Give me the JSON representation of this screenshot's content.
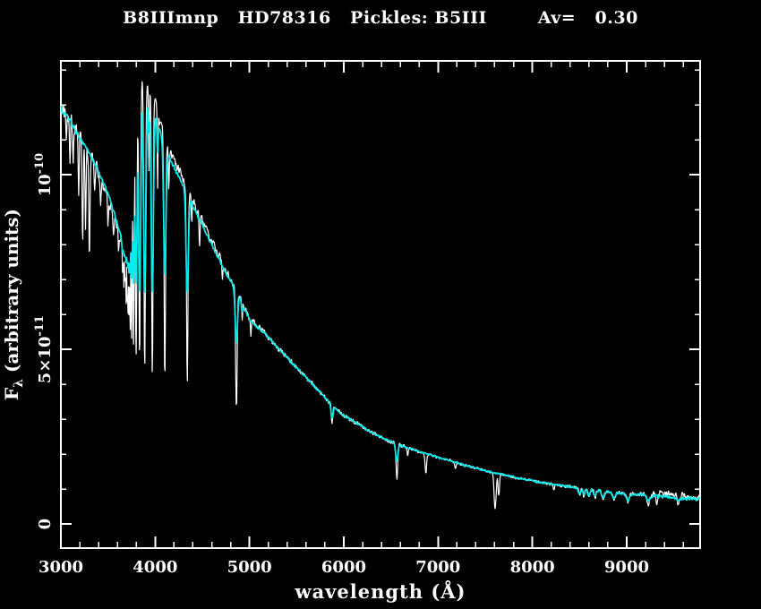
{
  "window": {
    "background": "#000000"
  },
  "chart_data": {
    "type": "line",
    "title": "B8IIImnp   HD78316   Pickles: B5III        Av=   0.30",
    "target_name": "HD78316",
    "spectral_type_label": "B8IIImnp",
    "template_label": "Pickles: B5III",
    "extinction_label": "Av=   0.30",
    "xlabel": "wavelength (Å)",
    "ylabel_parts": {
      "pre": "F",
      "sub": "λ",
      "post": " (arbitrary units)"
    },
    "x_axis": {
      "min": 3000,
      "max": 9779,
      "major_ticks": [
        3000,
        4000,
        5000,
        6000,
        7000,
        8000,
        9000
      ],
      "tick_labels": [
        "3000",
        "4000",
        "5000",
        "6000",
        "7000",
        "8000",
        "9000"
      ],
      "minor_step": 200
    },
    "y_axis": {
      "min": -6.9e-12,
      "max": 1.326e-10,
      "major_ticks": [
        {
          "value": 0,
          "label": "0"
        },
        {
          "value": 5e-11,
          "label": "5×10^-11"
        },
        {
          "value": 1e-10,
          "label": "10^-10"
        }
      ],
      "minor_step": 1e-11
    },
    "flux_unit_scale": 1e-11,
    "grid": false,
    "legend": false,
    "series": [
      {
        "key": "observed",
        "color": "#ffffff",
        "stroke_width": 1.2
      },
      {
        "key": "template",
        "color": "#00eded",
        "stroke_width": 1.7
      }
    ],
    "continuum": [
      [
        3000,
        11.9
      ],
      [
        3060,
        11.7
      ],
      [
        3120,
        11.45
      ],
      [
        3200,
        11.05
      ],
      [
        3280,
        10.7
      ],
      [
        3360,
        10.3
      ],
      [
        3440,
        9.85
      ],
      [
        3520,
        9.3
      ],
      [
        3600,
        8.55
      ],
      [
        3650,
        8.15
      ],
      [
        3690,
        7.92
      ],
      [
        3715,
        8.1
      ],
      [
        3740,
        8.9
      ],
      [
        3765,
        10.0
      ],
      [
        3790,
        11.0
      ],
      [
        3820,
        11.8
      ],
      [
        3860,
        12.25
      ],
      [
        3920,
        12.15
      ],
      [
        3980,
        12.0
      ],
      [
        4040,
        11.35
      ],
      [
        4100,
        10.9
      ],
      [
        4160,
        10.4
      ],
      [
        4220,
        10.1
      ],
      [
        4280,
        9.8
      ],
      [
        4340,
        9.45
      ],
      [
        4420,
        9.0
      ],
      [
        4500,
        8.55
      ],
      [
        4600,
        8.0
      ],
      [
        4700,
        7.45
      ],
      [
        4820,
        6.85
      ],
      [
        4900,
        6.45
      ],
      [
        5000,
        5.85
      ],
      [
        5100,
        5.6
      ],
      [
        5200,
        5.35
      ],
      [
        5300,
        5.05
      ],
      [
        5400,
        4.75
      ],
      [
        5500,
        4.48
      ],
      [
        5600,
        4.2
      ],
      [
        5700,
        3.92
      ],
      [
        5800,
        3.62
      ],
      [
        5900,
        3.34
      ],
      [
        6000,
        3.1
      ],
      [
        6100,
        2.95
      ],
      [
        6200,
        2.78
      ],
      [
        6300,
        2.62
      ],
      [
        6400,
        2.48
      ],
      [
        6500,
        2.36
      ],
      [
        6600,
        2.26
      ],
      [
        6700,
        2.16
      ],
      [
        6800,
        2.07
      ],
      [
        6900,
        1.99
      ],
      [
        7000,
        1.91
      ],
      [
        7100,
        1.83
      ],
      [
        7200,
        1.75
      ],
      [
        7300,
        1.67
      ],
      [
        7400,
        1.6
      ],
      [
        7500,
        1.53
      ],
      [
        7600,
        1.46
      ],
      [
        7700,
        1.4
      ],
      [
        7800,
        1.34
      ],
      [
        7900,
        1.29
      ],
      [
        8000,
        1.24
      ],
      [
        8100,
        1.19
      ],
      [
        8200,
        1.14
      ],
      [
        8300,
        1.1
      ],
      [
        8400,
        1.06
      ],
      [
        8500,
        1.02
      ],
      [
        8600,
        0.99
      ],
      [
        8700,
        0.95
      ],
      [
        8800,
        0.92
      ],
      [
        8900,
        0.89
      ],
      [
        9000,
        0.87
      ],
      [
        9100,
        0.84
      ],
      [
        9200,
        0.82
      ],
      [
        9300,
        0.8
      ],
      [
        9400,
        0.78
      ],
      [
        9500,
        0.76
      ],
      [
        9600,
        0.74
      ],
      [
        9700,
        0.72
      ],
      [
        9780,
        0.71
      ]
    ],
    "observed_continuum_delta": [
      [
        3000,
        0
      ],
      [
        3380,
        0
      ],
      [
        3420,
        -0.15
      ],
      [
        3660,
        -0.12
      ],
      [
        3705,
        0
      ],
      [
        3815,
        0.05
      ],
      [
        3840,
        0.35
      ],
      [
        3990,
        0.3
      ],
      [
        4120,
        0.22
      ],
      [
        4400,
        0.15
      ],
      [
        4700,
        0.08
      ],
      [
        4950,
        0.02
      ],
      [
        5200,
        0
      ],
      [
        9250,
        0
      ],
      [
        9330,
        0.1
      ],
      [
        9450,
        0.12
      ],
      [
        9600,
        0.07
      ],
      [
        9780,
        0.06
      ]
    ],
    "absorption_lines": [
      [
        3060,
        5,
        11.0,
        null
      ],
      [
        3096,
        5,
        10.4,
        null
      ],
      [
        3130,
        5,
        10.1,
        null
      ],
      [
        3188,
        5,
        9.4,
        null
      ],
      [
        3230,
        6,
        8.0,
        null
      ],
      [
        3262,
        5,
        8.5,
        null
      ],
      [
        3302,
        6,
        7.6,
        null
      ],
      [
        3360,
        5,
        9.5,
        null
      ],
      [
        3422,
        5,
        9.1,
        null
      ],
      [
        3500,
        5,
        8.6,
        null
      ],
      [
        3555,
        5,
        8.3,
        null
      ],
      [
        3612,
        4,
        7.8,
        null
      ],
      [
        3655,
        4,
        7.1,
        7.8
      ],
      [
        3668,
        4,
        6.9,
        7.7
      ],
      [
        3680,
        4,
        6.7,
        7.6
      ],
      [
        3692,
        4,
        6.4,
        7.5
      ],
      [
        3704,
        4,
        6.15,
        7.4
      ],
      [
        3713,
        4,
        5.95,
        7.3
      ],
      [
        3723,
        4,
        5.75,
        7.2
      ],
      [
        3735,
        5,
        5.5,
        7.1
      ],
      [
        3750,
        5,
        5.2,
        7.0
      ],
      [
        3771,
        6,
        5.0,
        6.9
      ],
      [
        3798,
        7,
        4.85,
        6.8
      ],
      [
        3835,
        8,
        4.6,
        6.6
      ],
      [
        3889,
        8,
        4.4,
        6.55
      ],
      [
        3934,
        4,
        10.2,
        11.2
      ],
      [
        3970,
        8,
        4.3,
        6.55
      ],
      [
        4026,
        4,
        9.6,
        10.6
      ],
      [
        4102,
        8,
        4.2,
        7.1
      ],
      [
        4144,
        4,
        9.6,
        null
      ],
      [
        4340,
        8,
        4.05,
        6.6
      ],
      [
        4388,
        4,
        8.6,
        null
      ],
      [
        4471,
        5,
        7.9,
        9.0
      ],
      [
        4713,
        4,
        6.9,
        null
      ],
      [
        4861,
        8,
        3.25,
        5.2
      ],
      [
        4922,
        4,
        5.85,
        6.05
      ],
      [
        5015,
        4,
        5.3,
        null
      ],
      [
        5876,
        7,
        2.9,
        3.02
      ],
      [
        6563,
        8,
        1.25,
        1.8
      ],
      [
        6678,
        4,
        1.95,
        null
      ],
      [
        6870,
        8,
        1.45,
        null
      ],
      [
        7186,
        7,
        1.6,
        null
      ],
      [
        7605,
        11,
        0.45,
        null
      ],
      [
        7643,
        8,
        0.8,
        null
      ],
      [
        8228,
        7,
        0.95,
        null
      ],
      [
        8502,
        7,
        0.8,
        0.84
      ],
      [
        8545,
        7,
        0.78,
        0.83
      ],
      [
        8598,
        8,
        0.76,
        0.81
      ],
      [
        8665,
        8,
        0.73,
        0.79
      ],
      [
        8750,
        9,
        0.7,
        0.76
      ],
      [
        8863,
        10,
        0.67,
        0.73
      ],
      [
        9015,
        11,
        0.62,
        0.7
      ],
      [
        9229,
        12,
        0.56,
        0.66
      ],
      [
        9320,
        7,
        0.55,
        null
      ],
      [
        9546,
        12,
        0.52,
        0.63
      ]
    ],
    "noise_amp_observed": [
      [
        3000,
        0.26
      ],
      [
        3300,
        0.2
      ],
      [
        3500,
        0.14
      ],
      [
        3690,
        0.2
      ],
      [
        3980,
        0.16
      ],
      [
        4400,
        0.13
      ],
      [
        4900,
        0.1
      ],
      [
        5300,
        0.08
      ],
      [
        5900,
        0.06
      ],
      [
        6500,
        0.05
      ],
      [
        7000,
        0.042
      ],
      [
        7800,
        0.038
      ],
      [
        8400,
        0.045
      ],
      [
        8900,
        0.055
      ],
      [
        9150,
        0.08
      ],
      [
        9400,
        0.09
      ],
      [
        9780,
        0.085
      ]
    ],
    "noise_amp_template": [
      [
        3000,
        0.09
      ],
      [
        3600,
        0.06
      ],
      [
        4200,
        0.05
      ],
      [
        5000,
        0.04
      ],
      [
        6000,
        0.03
      ],
      [
        7000,
        0.022
      ],
      [
        8200,
        0.03
      ],
      [
        8800,
        0.045
      ],
      [
        9300,
        0.05
      ],
      [
        9780,
        0.05
      ]
    ]
  },
  "colors": {
    "background": "#000000",
    "frame": "#ffffff",
    "text": "#ffffff",
    "observed_series": "#ffffff",
    "template_series": "#00eded"
  }
}
